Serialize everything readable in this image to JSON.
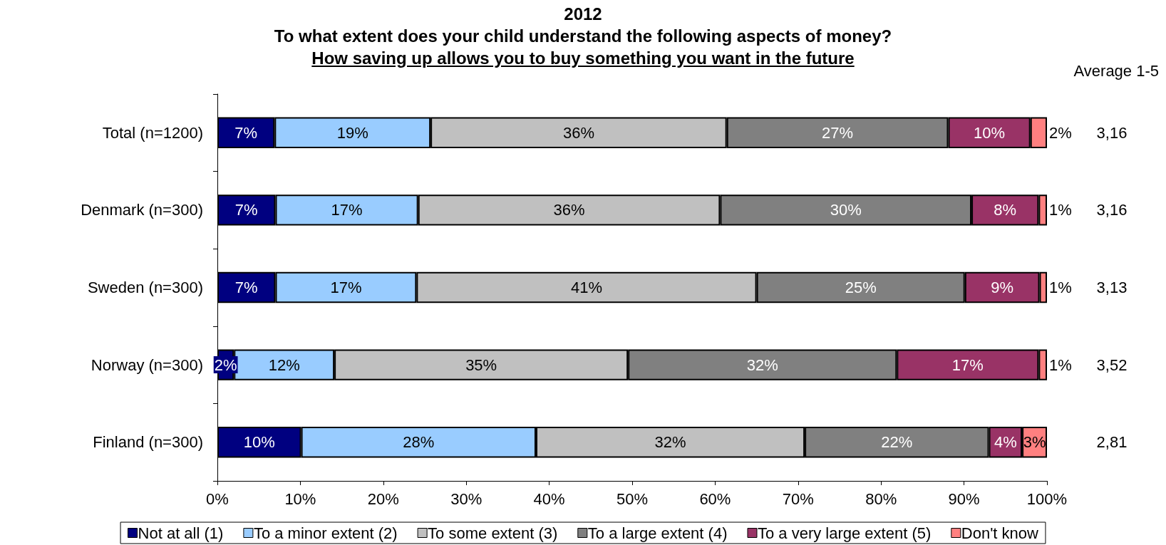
{
  "chart_data": {
    "type": "bar",
    "orientation": "horizontal",
    "stacked": true,
    "title": "2012",
    "subtitle": "To what extent does your child understand the following aspects of money?\nHow saving up allows you to buy something you want in the future",
    "categories": [
      "Total (n=1200)",
      "Denmark (n=300)",
      "Sweden (n=300)",
      "Norway (n=300)",
      "Finland (n=300)"
    ],
    "series": [
      {
        "name": "Not at all (1)",
        "color": "#000080",
        "values": [
          6.9,
          7.0,
          7.0,
          2.0,
          10.1
        ],
        "value_labels": [
          "7%",
          "7%",
          "7%",
          "2%",
          "10%"
        ]
      },
      {
        "name": "To a minor extent (2)",
        "color": "#99ccff",
        "values": [
          18.8,
          17.2,
          17.0,
          12.1,
          28.3
        ],
        "value_labels": [
          "19%",
          "17%",
          "17%",
          "12%",
          "28%"
        ]
      },
      {
        "name": "To some extent (3)",
        "color": "#c0c0c0",
        "values": [
          35.7,
          36.4,
          41.0,
          35.4,
          32.4
        ],
        "value_labels": [
          "36%",
          "36%",
          "41%",
          "35%",
          "32%"
        ]
      },
      {
        "name": "To a large extent (4)",
        "color": "#808080",
        "values": [
          26.7,
          30.3,
          25.1,
          32.4,
          22.2
        ],
        "value_labels": [
          "27%",
          "30%",
          "25%",
          "32%",
          "22%"
        ]
      },
      {
        "name": "To a very large extent (5)",
        "color": "#993366",
        "values": [
          9.9,
          8.1,
          9.0,
          17.1,
          4.0
        ],
        "value_labels": [
          "10%",
          "8%",
          "9%",
          "17%",
          "4%"
        ]
      },
      {
        "name": "Don't know",
        "color": "#ff8080",
        "values": [
          2.0,
          1.0,
          0.9,
          1.0,
          3.0
        ],
        "value_labels": [
          "2%",
          "1%",
          "1%",
          "1%",
          "3%"
        ]
      }
    ],
    "xlim": [
      0,
      100
    ],
    "xticks": [
      {
        "value": 0,
        "label": "0%"
      },
      {
        "value": 10,
        "label": "10%"
      },
      {
        "value": 20,
        "label": "20%"
      },
      {
        "value": 30,
        "label": "30%"
      },
      {
        "value": 40,
        "label": "40%"
      },
      {
        "value": 50,
        "label": "50%"
      },
      {
        "value": 60,
        "label": "60%"
      },
      {
        "value": 70,
        "label": "70%"
      },
      {
        "value": 80,
        "label": "80%"
      },
      {
        "value": 90,
        "label": "90%"
      },
      {
        "value": 100,
        "label": "100%"
      }
    ],
    "annotations": [
      "Average 1-5",
      "3,16",
      "3,16",
      "3,13",
      "3,52",
      "2,81"
    ],
    "legend": "bottom",
    "grid": false
  }
}
